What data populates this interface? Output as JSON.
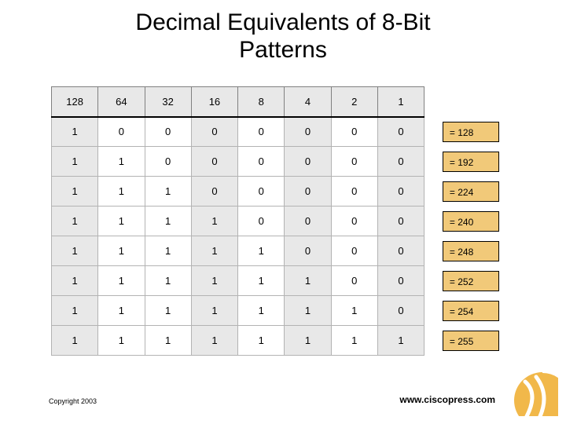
{
  "title_line1": "Decimal Equivalents of 8-Bit",
  "title_line2": "Patterns",
  "headers": [
    "128",
    "64",
    "32",
    "16",
    "8",
    "4",
    "2",
    "1"
  ],
  "rows": [
    {
      "bits": [
        "1",
        "0",
        "0",
        "0",
        "0",
        "0",
        "0",
        "0"
      ],
      "res": "= 128"
    },
    {
      "bits": [
        "1",
        "1",
        "0",
        "0",
        "0",
        "0",
        "0",
        "0"
      ],
      "res": "= 192"
    },
    {
      "bits": [
        "1",
        "1",
        "1",
        "0",
        "0",
        "0",
        "0",
        "0"
      ],
      "res": "= 224"
    },
    {
      "bits": [
        "1",
        "1",
        "1",
        "1",
        "0",
        "0",
        "0",
        "0"
      ],
      "res": "= 240"
    },
    {
      "bits": [
        "1",
        "1",
        "1",
        "1",
        "1",
        "0",
        "0",
        "0"
      ],
      "res": "= 248"
    },
    {
      "bits": [
        "1",
        "1",
        "1",
        "1",
        "1",
        "1",
        "0",
        "0"
      ],
      "res": "= 252"
    },
    {
      "bits": [
        "1",
        "1",
        "1",
        "1",
        "1",
        "1",
        "1",
        "0"
      ],
      "res": "= 254"
    },
    {
      "bits": [
        "1",
        "1",
        "1",
        "1",
        "1",
        "1",
        "1",
        "1"
      ],
      "res": "= 255"
    }
  ],
  "shaded_cols": [
    0,
    3,
    5,
    7
  ],
  "copyright": "Copyright 2003",
  "siteurl": "www.ciscopress.com",
  "colors": {
    "header_bg": "#e8e8e8",
    "shaded_bg": "#e8e8e8",
    "resbox_bg": "#f1c979",
    "logo_fill": "#f1b84a"
  }
}
